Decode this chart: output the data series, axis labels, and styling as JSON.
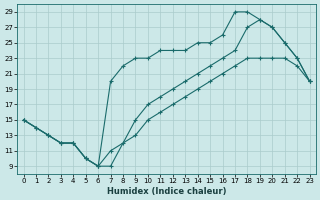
{
  "xlabel": "Humidex (Indice chaleur)",
  "bg_color": "#cce8e8",
  "grid_color": "#aacccc",
  "line_color": "#1a6b6b",
  "xlim": [
    -0.5,
    23.5
  ],
  "ylim": [
    8,
    30
  ],
  "xticks": [
    0,
    1,
    2,
    3,
    4,
    5,
    6,
    7,
    8,
    9,
    10,
    11,
    12,
    13,
    14,
    15,
    16,
    17,
    18,
    19,
    20,
    21,
    22,
    23
  ],
  "yticks": [
    9,
    11,
    13,
    15,
    17,
    19,
    21,
    23,
    25,
    27,
    29
  ],
  "line1_x": [
    0,
    1,
    2,
    3,
    4,
    5,
    6,
    7,
    8,
    9,
    10,
    11,
    12,
    13,
    14,
    15,
    16,
    17,
    18,
    19,
    20,
    21,
    22,
    23
  ],
  "line1_y": [
    15,
    14,
    13,
    12,
    12,
    10,
    9,
    20,
    22,
    23,
    23,
    24,
    24,
    24,
    25,
    25,
    26,
    29,
    29,
    28,
    27,
    25,
    23,
    20
  ],
  "line2_x": [
    0,
    2,
    3,
    4,
    5,
    6,
    7,
    9,
    10,
    11,
    12,
    13,
    14,
    15,
    16,
    17,
    18,
    19,
    20,
    21,
    22,
    23
  ],
  "line2_y": [
    15,
    13,
    12,
    12,
    10,
    9,
    9,
    15,
    17,
    18,
    19,
    20,
    21,
    22,
    23,
    24,
    27,
    28,
    27,
    25,
    23,
    20
  ],
  "line3_x": [
    0,
    1,
    2,
    3,
    4,
    5,
    6,
    7,
    8,
    9,
    10,
    11,
    12,
    13,
    14,
    15,
    16,
    17,
    18,
    19,
    20,
    21,
    22,
    23
  ],
  "line3_y": [
    15,
    14,
    13,
    12,
    12,
    10,
    9,
    11,
    12,
    13,
    15,
    16,
    17,
    18,
    19,
    20,
    21,
    22,
    23,
    23,
    23,
    23,
    22,
    20
  ]
}
